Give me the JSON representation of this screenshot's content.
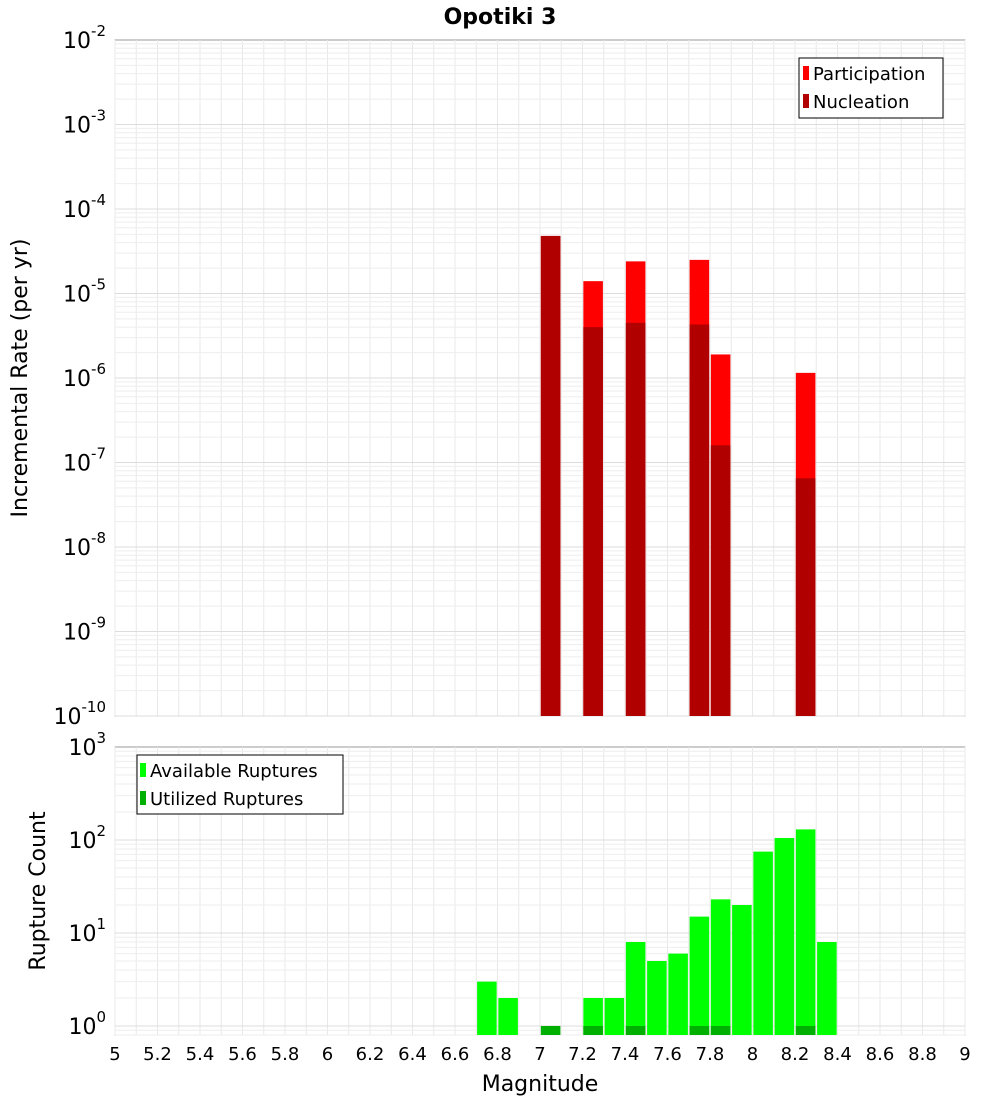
{
  "chart_data": [
    {
      "type": "bar",
      "title": "Opotiki 3",
      "ylabel": "Incremental Rate (per yr)",
      "yscale": "log",
      "ylim": [
        1e-10,
        0.01
      ],
      "xlim": [
        5,
        9
      ],
      "grid": true,
      "legend_position": "top-right",
      "y_ticks": [
        {
          "base": "10",
          "exp": "-10"
        },
        {
          "base": "10",
          "exp": "-9"
        },
        {
          "base": "10",
          "exp": "-8"
        },
        {
          "base": "10",
          "exp": "-7"
        },
        {
          "base": "10",
          "exp": "-6"
        },
        {
          "base": "10",
          "exp": "-5"
        },
        {
          "base": "10",
          "exp": "-4"
        },
        {
          "base": "10",
          "exp": "-3"
        },
        {
          "base": "10",
          "exp": "-2"
        }
      ],
      "series": [
        {
          "name": "Participation",
          "color": "#ff0000",
          "points": [
            [
              7.05,
              4.8e-05
            ],
            [
              7.25,
              1.4e-05
            ],
            [
              7.45,
              2.4e-05
            ],
            [
              7.75,
              2.5e-05
            ],
            [
              7.85,
              1.9e-06
            ],
            [
              8.25,
              1.15e-06
            ]
          ]
        },
        {
          "name": "Nucleation",
          "color": "#b00000",
          "points": [
            [
              7.05,
              4.8e-05
            ],
            [
              7.25,
              4e-06
            ],
            [
              7.45,
              4.5e-06
            ],
            [
              7.75,
              4.3e-06
            ],
            [
              7.85,
              1.6e-07
            ],
            [
              8.25,
              6.5e-08
            ]
          ]
        }
      ]
    },
    {
      "type": "bar",
      "xlabel": "Magnitude",
      "ylabel": "Rupture Count",
      "yscale": "log",
      "ylim": [
        0.8,
        1000
      ],
      "xlim": [
        5,
        9
      ],
      "grid": true,
      "legend_position": "top-left",
      "x_ticks": [
        "5",
        "5.2",
        "5.4",
        "5.6",
        "5.8",
        "6",
        "6.2",
        "6.4",
        "6.6",
        "6.8",
        "7",
        "7.2",
        "7.4",
        "7.6",
        "7.8",
        "8",
        "8.2",
        "8.4",
        "8.6",
        "8.8",
        "9"
      ],
      "y_ticks": [
        {
          "base": "10",
          "exp": "0"
        },
        {
          "base": "10",
          "exp": "1"
        },
        {
          "base": "10",
          "exp": "2"
        },
        {
          "base": "10",
          "exp": "3"
        }
      ],
      "series": [
        {
          "name": "Available Ruptures",
          "color": "#00ff00",
          "points": [
            [
              6.75,
              3
            ],
            [
              6.85,
              2
            ],
            [
              7.25,
              2
            ],
            [
              7.35,
              2
            ],
            [
              7.45,
              8
            ],
            [
              7.55,
              5
            ],
            [
              7.65,
              6
            ],
            [
              7.75,
              15
            ],
            [
              7.85,
              23
            ],
            [
              7.95,
              20
            ],
            [
              8.05,
              75
            ],
            [
              8.15,
              105
            ],
            [
              8.25,
              130
            ],
            [
              8.35,
              8
            ]
          ]
        },
        {
          "name": "Utilized Ruptures",
          "color": "#00b000",
          "points": [
            [
              7.05,
              1
            ],
            [
              7.25,
              1
            ],
            [
              7.45,
              1
            ],
            [
              7.75,
              1
            ],
            [
              7.85,
              1
            ],
            [
              8.25,
              1
            ]
          ]
        }
      ]
    }
  ]
}
